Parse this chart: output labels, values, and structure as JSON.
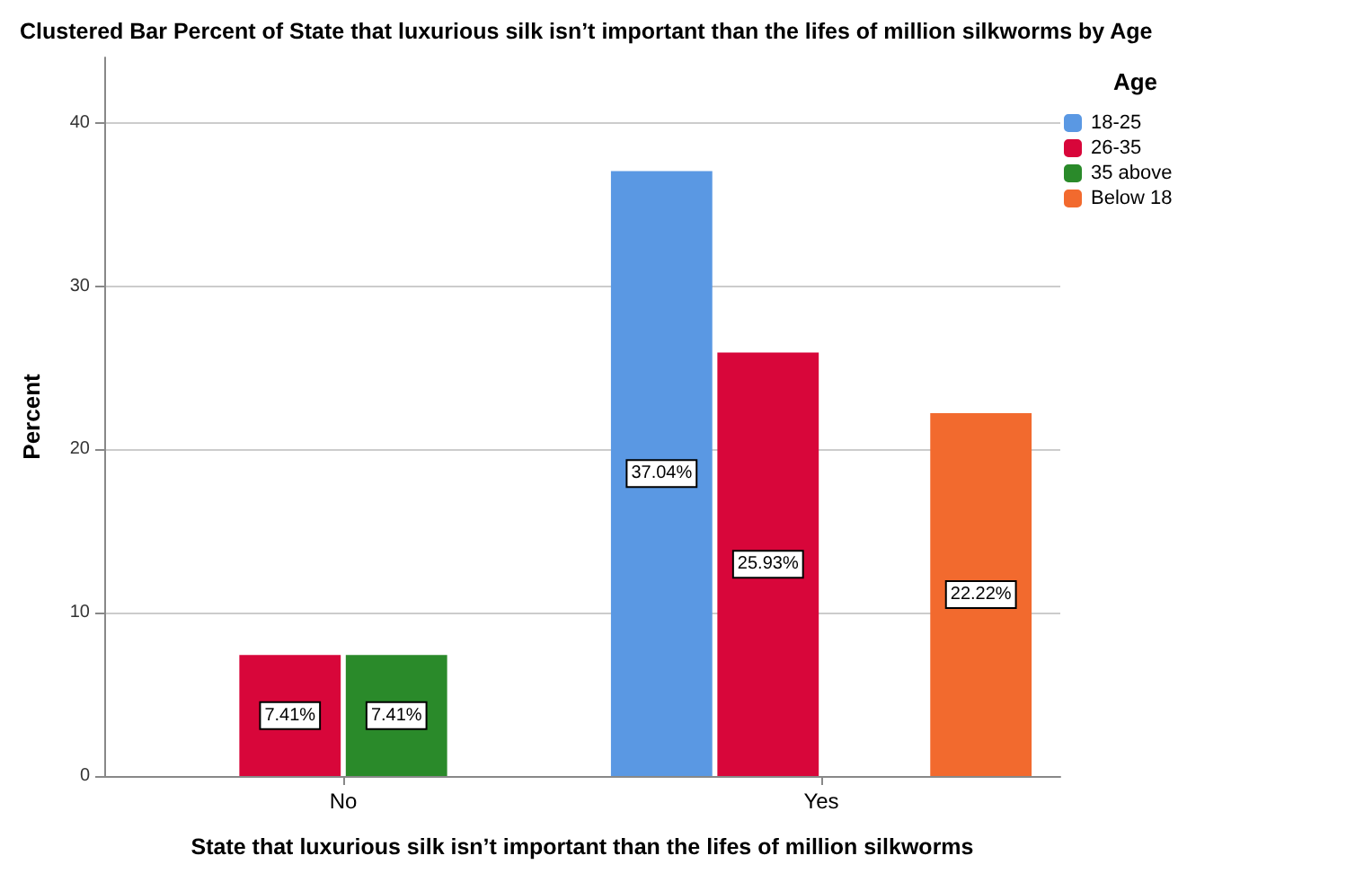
{
  "chart_data": {
    "type": "bar",
    "title": "Clustered Bar Percent of State that luxurious silk isn’t important than the lifes of million silkworms by Age",
    "xlabel": "State that luxurious silk isn’t important than the lifes of million silkworms",
    "ylabel": "Percent",
    "legend_title": "Age",
    "categories": [
      "No",
      "Yes"
    ],
    "series": [
      {
        "name": "18-25",
        "color": "#5a98e3",
        "values": [
          null,
          37.04
        ],
        "value_labels": [
          null,
          "37.04%"
        ]
      },
      {
        "name": "26-35",
        "color": "#d8063a",
        "values": [
          7.41,
          25.93
        ],
        "value_labels": [
          "7.41%",
          "25.93%"
        ]
      },
      {
        "name": "35 above",
        "color": "#2a8a2a",
        "values": [
          7.41,
          null
        ],
        "value_labels": [
          "7.41%",
          null
        ]
      },
      {
        "name": "Below 18",
        "color": "#f26a2e",
        "values": [
          null,
          22.22
        ],
        "value_labels": [
          null,
          "22.22%"
        ]
      }
    ],
    "ylim": [
      0,
      44
    ],
    "yticks": [
      0,
      10,
      20,
      30,
      40
    ],
    "grid": "y",
    "legend": "right"
  }
}
